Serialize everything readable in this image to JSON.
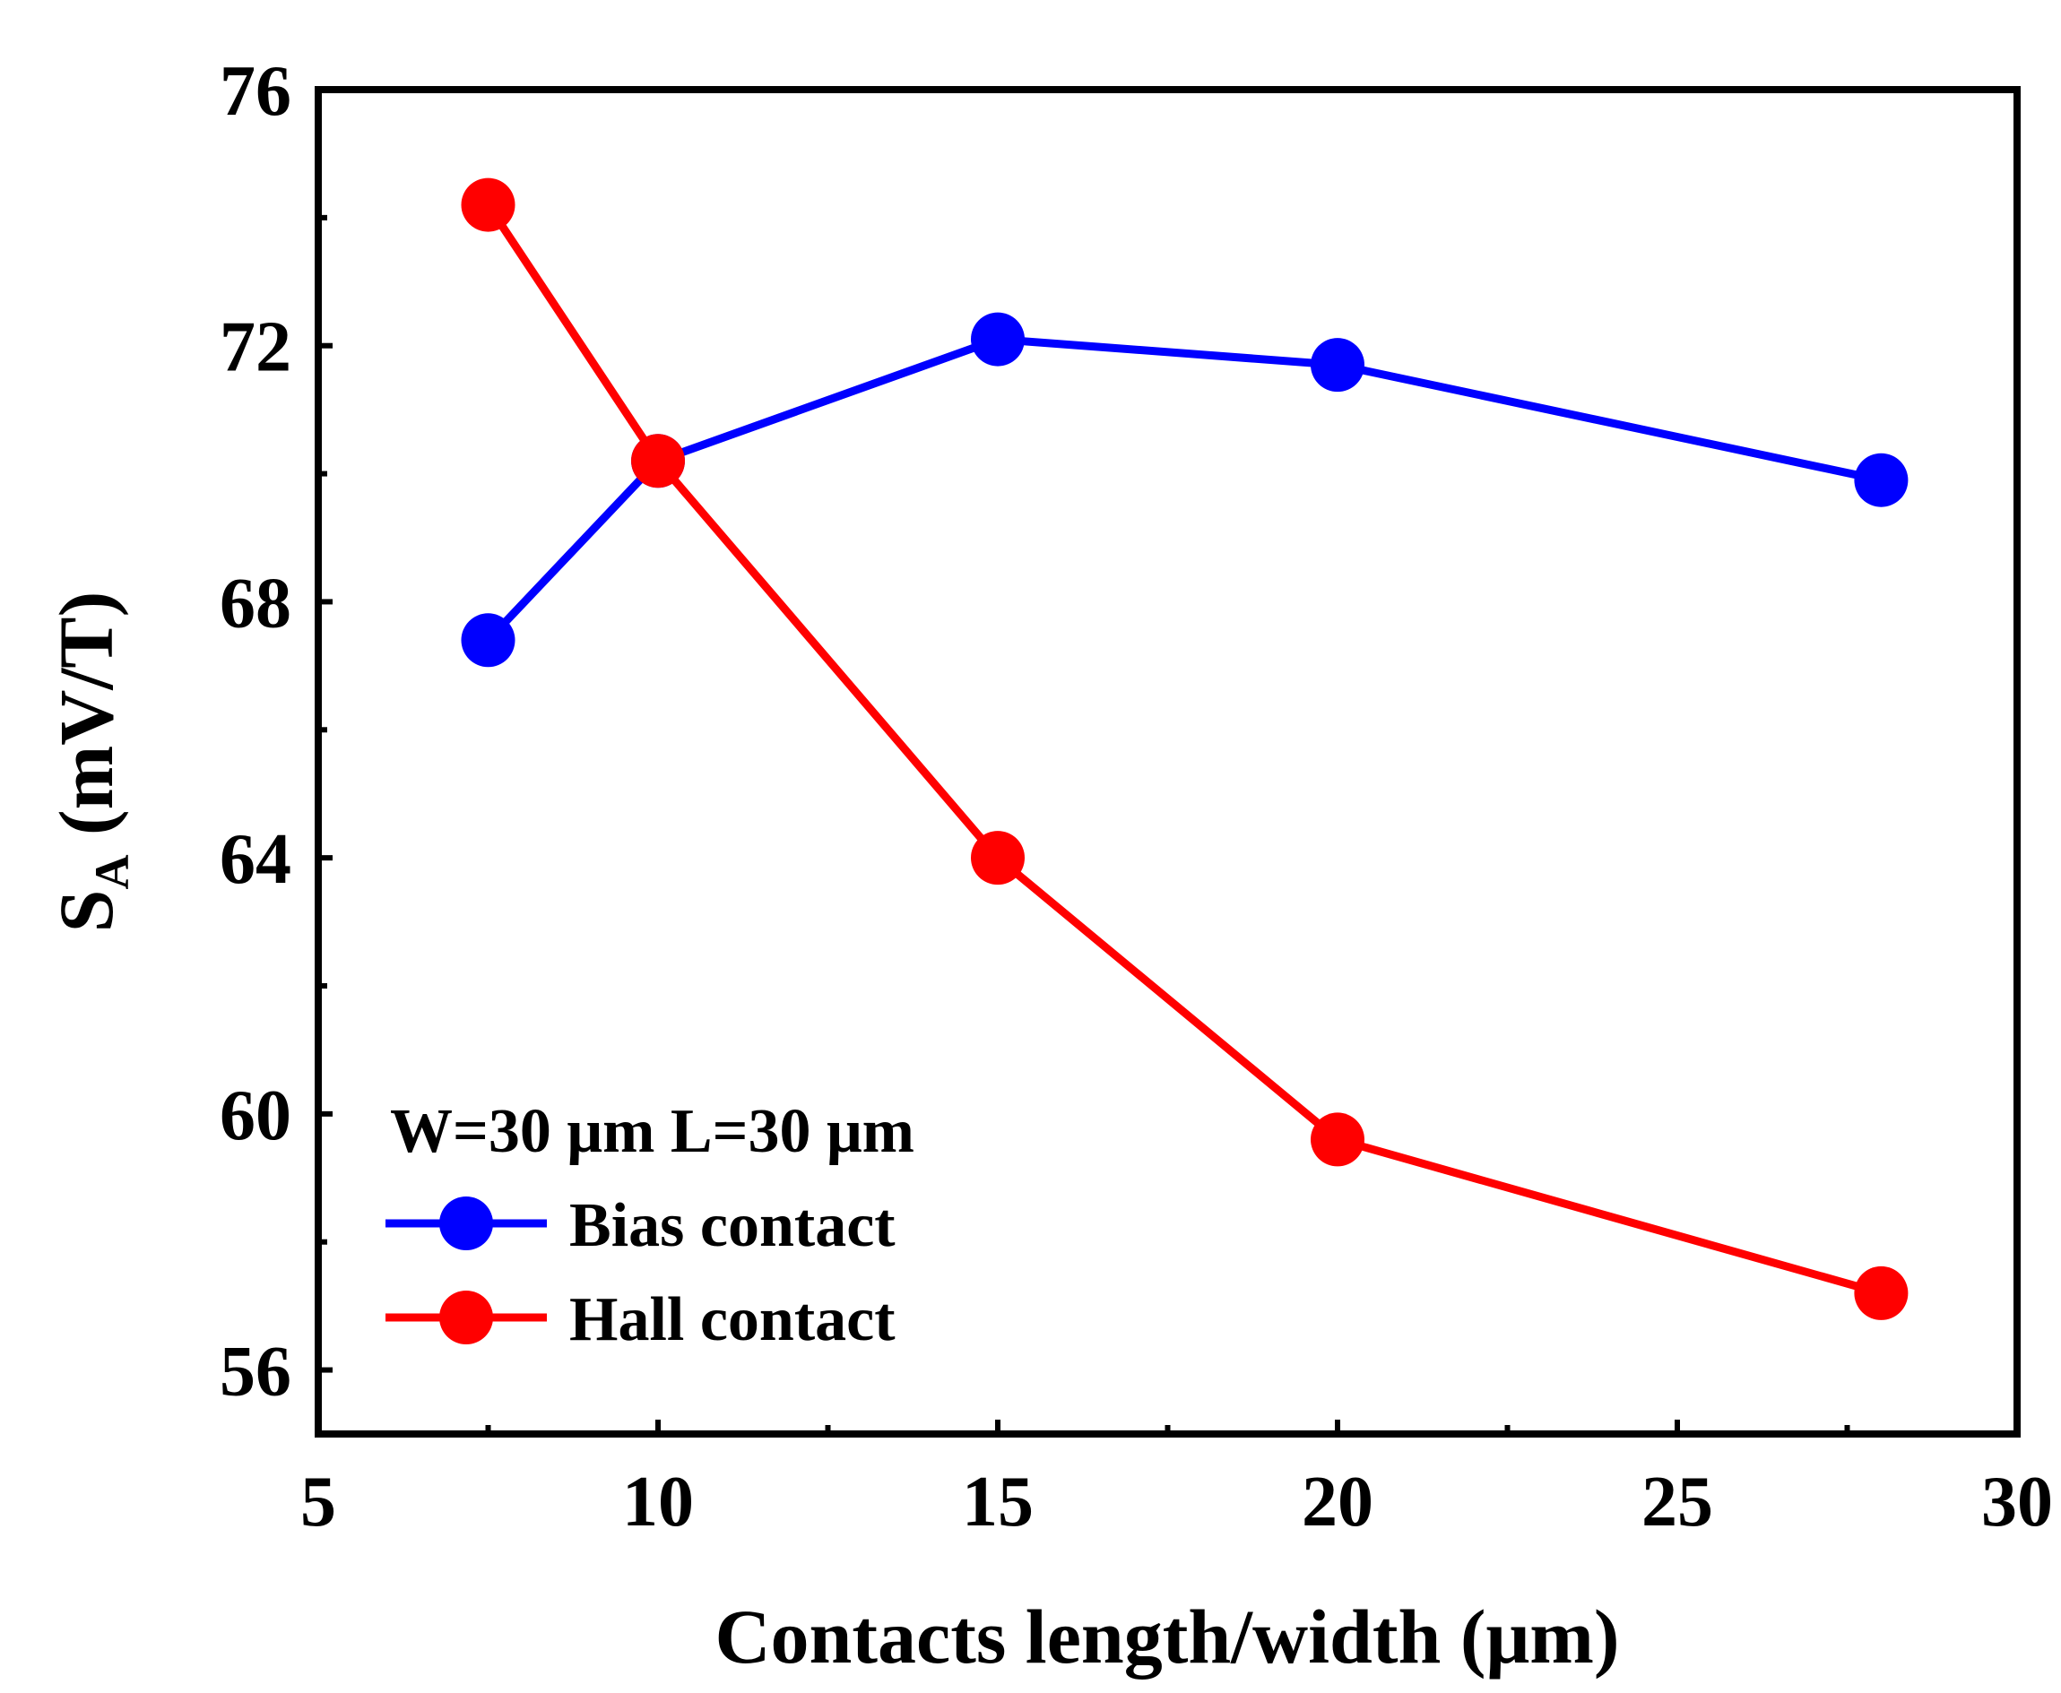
{
  "chart_data": {
    "type": "line",
    "title": "",
    "xlabel": "Contacts length/width (μm)",
    "ylabel_main": "S",
    "ylabel_sub": "A",
    "ylabel_rest": " (mV/T)",
    "xlim": [
      5,
      30
    ],
    "ylim": [
      55,
      76
    ],
    "xticks": [
      5,
      10,
      15,
      20,
      25,
      30
    ],
    "yticks": [
      56,
      60,
      64,
      68,
      72,
      76
    ],
    "x_minor_step": 2.5,
    "y_minor_step": 2,
    "grid": false,
    "annotation": "W=30 μm   L=30 μm",
    "legend_position": "bottom-left",
    "series": [
      {
        "name": "Bias contact",
        "color": "#0000ff",
        "marker": "circle",
        "x": [
          7.5,
          10,
          15,
          20,
          28
        ],
        "values": [
          67.4,
          70.2,
          72.1,
          71.7,
          69.9
        ]
      },
      {
        "name": "Hall contact",
        "color": "#ff0000",
        "marker": "circle",
        "x": [
          7.5,
          10,
          15,
          20,
          28
        ],
        "values": [
          74.2,
          70.2,
          64.0,
          59.6,
          57.2
        ]
      }
    ]
  }
}
